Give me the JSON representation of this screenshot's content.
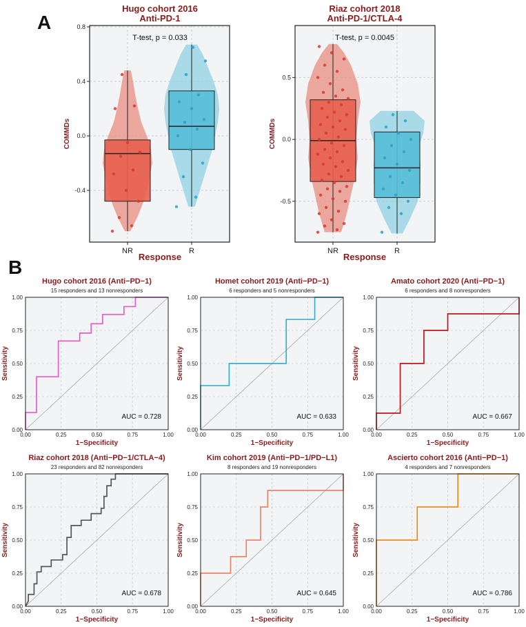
{
  "panel_labels": {
    "a": "A",
    "b": "B"
  },
  "colors": {
    "title": "#8b1a1a",
    "nr_fill": "#e8614e",
    "nr_violin": "#e88d80",
    "nr_point": "#d9382a",
    "r_fill": "#57bcd8",
    "r_violin": "#8fd2e3",
    "r_point": "#2aa0c8",
    "plot_bg": "#f2f4f6",
    "grid": "#c9ced3",
    "diag": "#a9a9a9"
  },
  "chart_data": [
    {
      "type": "violin-box",
      "title": "Hugo cohort 2016",
      "subtitle": "Anti-PD-1",
      "xlabel": "Response",
      "ylabel": "COMMDs",
      "annotation": "T-test, p = 0.033",
      "categories": [
        "NR",
        "R"
      ],
      "ylim": [
        -0.78,
        0.81
      ],
      "yticks": [
        -0.4,
        0.0,
        0.4,
        0.8
      ],
      "ytick_labels": [
        "-0.4",
        "0.0",
        "0.4",
        "0.8"
      ],
      "groups": [
        {
          "name": "NR",
          "q1": -0.48,
          "median": -0.13,
          "q3": -0.03,
          "wmin": -0.7,
          "wmax": 0.48,
          "violin": [
            [
              -0.7,
              0.1
            ],
            [
              -0.6,
              0.35
            ],
            [
              -0.5,
              0.55
            ],
            [
              -0.4,
              0.7
            ],
            [
              -0.3,
              0.8
            ],
            [
              -0.2,
              0.9
            ],
            [
              -0.1,
              0.85
            ],
            [
              0.0,
              0.7
            ],
            [
              0.1,
              0.5
            ],
            [
              0.2,
              0.38
            ],
            [
              0.3,
              0.28
            ],
            [
              0.4,
              0.2
            ],
            [
              0.48,
              0.12
            ]
          ],
          "points": [
            -0.7,
            -0.66,
            -0.6,
            -0.48,
            -0.4,
            -0.28,
            -0.25,
            -0.15,
            -0.12,
            -0.05,
            0.2,
            0.22,
            0.45
          ]
        },
        {
          "name": "R",
          "q1": -0.1,
          "median": 0.07,
          "q3": 0.33,
          "wmin": -0.52,
          "wmax": 0.67,
          "violin": [
            [
              -0.52,
              0.12
            ],
            [
              -0.4,
              0.3
            ],
            [
              -0.3,
              0.45
            ],
            [
              -0.2,
              0.6
            ],
            [
              -0.1,
              0.75
            ],
            [
              0.0,
              0.85
            ],
            [
              0.1,
              0.95
            ],
            [
              0.2,
              1.0
            ],
            [
              0.3,
              0.95
            ],
            [
              0.4,
              0.8
            ],
            [
              0.5,
              0.6
            ],
            [
              0.6,
              0.4
            ],
            [
              0.67,
              0.2
            ]
          ],
          "points": [
            -0.52,
            -0.45,
            -0.3,
            -0.2,
            -0.1,
            0.0,
            0.05,
            0.1,
            0.12,
            0.2,
            0.25,
            0.3,
            0.45,
            0.55,
            0.65
          ]
        }
      ]
    },
    {
      "type": "violin-box",
      "title": "Riaz cohort 2018",
      "subtitle": "Anti-PD-1/CTLA-4",
      "xlabel": "Response",
      "ylabel": "COMMDs",
      "annotation": "T-test, p = 0.0045",
      "categories": [
        "NR",
        "R"
      ],
      "ylim": [
        -0.83,
        0.92
      ],
      "yticks": [
        -0.5,
        0.0,
        0.5
      ],
      "ytick_labels": [
        "-0.5",
        "0.0",
        "0.5"
      ],
      "groups": [
        {
          "name": "NR",
          "q1": -0.34,
          "median": -0.01,
          "q3": 0.32,
          "wmin": -0.75,
          "wmax": 0.77,
          "violin": [
            [
              -0.75,
              0.3
            ],
            [
              -0.6,
              0.5
            ],
            [
              -0.45,
              0.65
            ],
            [
              -0.3,
              0.8
            ],
            [
              -0.15,
              0.9
            ],
            [
              0.0,
              0.85
            ],
            [
              0.15,
              0.9
            ],
            [
              0.3,
              1.0
            ],
            [
              0.45,
              0.9
            ],
            [
              0.6,
              0.65
            ],
            [
              0.7,
              0.4
            ],
            [
              0.77,
              0.15
            ]
          ],
          "points": [
            -0.75,
            -0.73,
            -0.7,
            -0.68,
            -0.65,
            -0.6,
            -0.58,
            -0.55,
            -0.5,
            -0.48,
            -0.45,
            -0.42,
            -0.4,
            -0.38,
            -0.35,
            -0.33,
            -0.3,
            -0.28,
            -0.25,
            -0.22,
            -0.2,
            -0.18,
            -0.15,
            -0.12,
            -0.1,
            -0.08,
            -0.05,
            -0.03,
            0.0,
            0.02,
            0.05,
            0.08,
            0.1,
            0.12,
            0.15,
            0.18,
            0.2,
            0.22,
            0.25,
            0.28,
            0.3,
            0.33,
            0.35,
            0.38,
            0.4,
            0.45,
            0.5,
            0.55,
            0.6,
            0.65,
            0.7,
            0.75
          ]
        },
        {
          "name": "R",
          "q1": -0.47,
          "median": -0.23,
          "q3": 0.06,
          "wmin": -0.76,
          "wmax": 0.23,
          "violin": [
            [
              -0.76,
              0.2
            ],
            [
              -0.65,
              0.45
            ],
            [
              -0.5,
              0.75
            ],
            [
              -0.35,
              0.85
            ],
            [
              -0.2,
              0.85
            ],
            [
              -0.05,
              0.8
            ],
            [
              0.05,
              0.95
            ],
            [
              0.15,
              1.0
            ],
            [
              0.23,
              0.6
            ]
          ],
          "points": [
            -0.75,
            -0.6,
            -0.55,
            -0.5,
            -0.45,
            -0.4,
            -0.35,
            -0.3,
            -0.25,
            -0.2,
            -0.15,
            -0.1,
            -0.05,
            0.0,
            0.05,
            0.1,
            0.15,
            0.2
          ]
        }
      ]
    },
    {
      "type": "line",
      "title": "Hugo cohort 2016 (Anti−PD−1)",
      "subtitle": "15 responders and 13 nonresponders",
      "auc": "AUC = 0.728",
      "color": "#e05fc4",
      "xlabel": "1−Specificity",
      "ylabel": "Sensitivity",
      "points": [
        [
          0,
          0
        ],
        [
          0,
          0.13
        ],
        [
          0.077,
          0.13
        ],
        [
          0.077,
          0.4
        ],
        [
          0.23,
          0.4
        ],
        [
          0.23,
          0.67
        ],
        [
          0.38,
          0.67
        ],
        [
          0.38,
          0.73
        ],
        [
          0.46,
          0.73
        ],
        [
          0.46,
          0.8
        ],
        [
          0.54,
          0.8
        ],
        [
          0.54,
          0.87
        ],
        [
          0.69,
          0.87
        ],
        [
          0.69,
          0.93
        ],
        [
          0.77,
          0.93
        ],
        [
          0.77,
          1
        ],
        [
          1,
          1
        ]
      ]
    },
    {
      "type": "line",
      "title": "Homet cohort 2019 (Anti−PD−1)",
      "subtitle": "6 responders and 5 nonresponders",
      "auc": "AUC = 0.633",
      "color": "#3aaed0",
      "xlabel": "1−Specificity",
      "ylabel": "Sensitivity",
      "points": [
        [
          0,
          0
        ],
        [
          0,
          0.333
        ],
        [
          0.2,
          0.333
        ],
        [
          0.2,
          0.5
        ],
        [
          0.6,
          0.5
        ],
        [
          0.6,
          0.833
        ],
        [
          0.8,
          0.833
        ],
        [
          0.8,
          1
        ],
        [
          1,
          1
        ]
      ]
    },
    {
      "type": "line",
      "title": "Amato cohort 2020 (Anti−PD−1)",
      "subtitle": "6 responders and 8 nonresponders",
      "auc": "AUC = 0.667",
      "color": "#c0141a",
      "xlabel": "1−Specificity",
      "ylabel": "Sensitivity",
      "points": [
        [
          0,
          0
        ],
        [
          0,
          0.125
        ],
        [
          0.167,
          0.125
        ],
        [
          0.167,
          0.5
        ],
        [
          0.333,
          0.5
        ],
        [
          0.333,
          0.75
        ],
        [
          0.5,
          0.75
        ],
        [
          0.5,
          0.875
        ],
        [
          1,
          0.875
        ],
        [
          1,
          1
        ]
      ]
    },
    {
      "type": "line",
      "title": "Riaz cohort 2018 (Anti−PD−1/CTLA−4)",
      "subtitle": "23 responders and 82 nonresponders",
      "auc": "AUC = 0.678",
      "color": "#555555",
      "xlabel": "1−Specificity",
      "ylabel": "Sensitivity",
      "points": [
        [
          0,
          0
        ],
        [
          0.02,
          0.04
        ],
        [
          0.02,
          0.09
        ],
        [
          0.06,
          0.09
        ],
        [
          0.06,
          0.17
        ],
        [
          0.08,
          0.17
        ],
        [
          0.08,
          0.26
        ],
        [
          0.11,
          0.26
        ],
        [
          0.11,
          0.3
        ],
        [
          0.18,
          0.3
        ],
        [
          0.18,
          0.35
        ],
        [
          0.26,
          0.35
        ],
        [
          0.26,
          0.39
        ],
        [
          0.29,
          0.39
        ],
        [
          0.29,
          0.52
        ],
        [
          0.32,
          0.52
        ],
        [
          0.32,
          0.61
        ],
        [
          0.39,
          0.61
        ],
        [
          0.39,
          0.65
        ],
        [
          0.46,
          0.65
        ],
        [
          0.46,
          0.7
        ],
        [
          0.53,
          0.7
        ],
        [
          0.53,
          0.74
        ],
        [
          0.55,
          0.74
        ],
        [
          0.55,
          0.83
        ],
        [
          0.57,
          0.83
        ],
        [
          0.57,
          0.91
        ],
        [
          0.6,
          0.91
        ],
        [
          0.6,
          0.96
        ],
        [
          0.63,
          0.96
        ],
        [
          0.63,
          1
        ],
        [
          1,
          1
        ]
      ]
    },
    {
      "type": "line",
      "title": "Kim cohort 2019 (Anti−PD−1/PD−L1)",
      "subtitle": "8 responders and 19 nonresponders",
      "auc": "AUC = 0.645",
      "color": "#f0826a",
      "xlabel": "1−Specificity",
      "ylabel": "Sensitivity",
      "points": [
        [
          0,
          0
        ],
        [
          0,
          0.25
        ],
        [
          0.21,
          0.25
        ],
        [
          0.21,
          0.375
        ],
        [
          0.32,
          0.375
        ],
        [
          0.32,
          0.5
        ],
        [
          0.42,
          0.5
        ],
        [
          0.42,
          0.75
        ],
        [
          0.47,
          0.75
        ],
        [
          0.47,
          0.875
        ],
        [
          1,
          0.875
        ],
        [
          1,
          1
        ]
      ]
    },
    {
      "type": "line",
      "title": "Ascierto cohort 2016 (Anti−PD−1)",
      "subtitle": "4 responders and 7 nonresponders",
      "auc": "AUC = 0.786",
      "color": "#f08a1c",
      "xlabel": "1−Specificity",
      "ylabel": "Sensitivity",
      "points": [
        [
          0,
          0
        ],
        [
          0,
          0.5
        ],
        [
          0.286,
          0.5
        ],
        [
          0.286,
          0.75
        ],
        [
          0.571,
          0.75
        ],
        [
          0.571,
          1
        ],
        [
          1,
          1
        ]
      ]
    }
  ],
  "roc_ticks": {
    "values": [
      0,
      0.25,
      0.5,
      0.75,
      1
    ],
    "labels": [
      "0.00",
      "0.25",
      "0.50",
      "0.75",
      "1.00"
    ]
  }
}
